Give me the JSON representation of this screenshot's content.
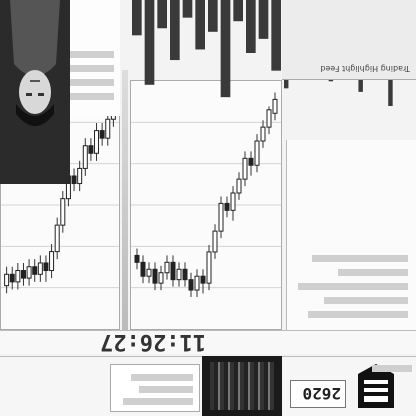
{
  "header": {
    "bottom_left_title": "Trading Highlight Feed"
  },
  "clock": {
    "time": "11:26:27",
    "price_label": "2620"
  },
  "stock_charts": {
    "left_candles": [
      {
        "o": 6,
        "c": 14,
        "h": 18,
        "l": 2
      },
      {
        "o": 12,
        "c": 22,
        "h": 26,
        "l": 10
      },
      {
        "o": 22,
        "c": 30,
        "h": 34,
        "l": 18
      },
      {
        "o": 30,
        "c": 44,
        "h": 48,
        "l": 26
      },
      {
        "o": 44,
        "c": 40,
        "h": 50,
        "l": 36
      },
      {
        "o": 40,
        "c": 52,
        "h": 56,
        "l": 36
      },
      {
        "o": 52,
        "c": 60,
        "h": 64,
        "l": 48
      },
      {
        "o": 60,
        "c": 70,
        "h": 76,
        "l": 56
      },
      {
        "o": 70,
        "c": 66,
        "h": 74,
        "l": 62
      },
      {
        "o": 66,
        "c": 82,
        "h": 86,
        "l": 62
      },
      {
        "o": 82,
        "c": 94,
        "h": 98,
        "l": 78
      },
      {
        "o": 94,
        "c": 112,
        "h": 116,
        "l": 90
      },
      {
        "o": 112,
        "c": 108,
        "h": 118,
        "l": 104
      },
      {
        "o": 108,
        "c": 116,
        "h": 120,
        "l": 104
      },
      {
        "o": 116,
        "c": 110,
        "h": 120,
        "l": 106
      },
      {
        "o": 110,
        "c": 104,
        "h": 114,
        "l": 100
      },
      {
        "o": 104,
        "c": 110,
        "h": 114,
        "l": 100
      },
      {
        "o": 110,
        "c": 100,
        "h": 114,
        "l": 96
      },
      {
        "o": 100,
        "c": 106,
        "h": 110,
        "l": 96
      },
      {
        "o": 106,
        "c": 112,
        "h": 116,
        "l": 102
      },
      {
        "o": 112,
        "c": 104,
        "h": 116,
        "l": 100
      },
      {
        "o": 104,
        "c": 108,
        "h": 112,
        "l": 100
      },
      {
        "o": 108,
        "c": 100,
        "h": 112,
        "l": 96
      },
      {
        "o": 100,
        "c": 96,
        "h": 104,
        "l": 92
      }
    ],
    "right_candles": [
      {
        "o": 8,
        "c": 16,
        "h": 20,
        "l": 4
      },
      {
        "o": 16,
        "c": 26,
        "h": 30,
        "l": 12
      },
      {
        "o": 26,
        "c": 22,
        "h": 30,
        "l": 18
      },
      {
        "o": 22,
        "c": 34,
        "h": 38,
        "l": 18
      },
      {
        "o": 34,
        "c": 30,
        "h": 38,
        "l": 26
      },
      {
        "o": 30,
        "c": 42,
        "h": 46,
        "l": 26
      },
      {
        "o": 42,
        "c": 50,
        "h": 54,
        "l": 38
      },
      {
        "o": 50,
        "c": 46,
        "h": 54,
        "l": 42
      },
      {
        "o": 46,
        "c": 58,
        "h": 62,
        "l": 42
      },
      {
        "o": 58,
        "c": 72,
        "h": 76,
        "l": 54
      },
      {
        "o": 72,
        "c": 86,
        "h": 90,
        "l": 68
      },
      {
        "o": 86,
        "c": 96,
        "h": 100,
        "l": 82
      },
      {
        "o": 96,
        "c": 92,
        "h": 102,
        "l": 88
      },
      {
        "o": 92,
        "c": 98,
        "h": 102,
        "l": 88
      },
      {
        "o": 98,
        "c": 94,
        "h": 102,
        "l": 90
      },
      {
        "o": 94,
        "c": 100,
        "h": 104,
        "l": 90
      },
      {
        "o": 100,
        "c": 96,
        "h": 104,
        "l": 92
      },
      {
        "o": 96,
        "c": 102,
        "h": 106,
        "l": 92
      },
      {
        "o": 102,
        "c": 98,
        "h": 106,
        "l": 94
      },
      {
        "o": 98,
        "c": 104,
        "h": 108,
        "l": 94
      }
    ],
    "volume_top_left": [
      40,
      22,
      30,
      12,
      55,
      18,
      28,
      10,
      34,
      16,
      48,
      20
    ],
    "volume_top_right": [
      30,
      44,
      20,
      60,
      26,
      38,
      14,
      52,
      18,
      36,
      24,
      46,
      12,
      40,
      28,
      34,
      22,
      50
    ]
  },
  "colors": {
    "candle": "#222222",
    "wick": "#333333",
    "grid": "#d4d4d4",
    "panel_dark": "#1a1a1a"
  },
  "icons": {
    "portrait": "person-photo",
    "logo": "ribbon-logo"
  }
}
